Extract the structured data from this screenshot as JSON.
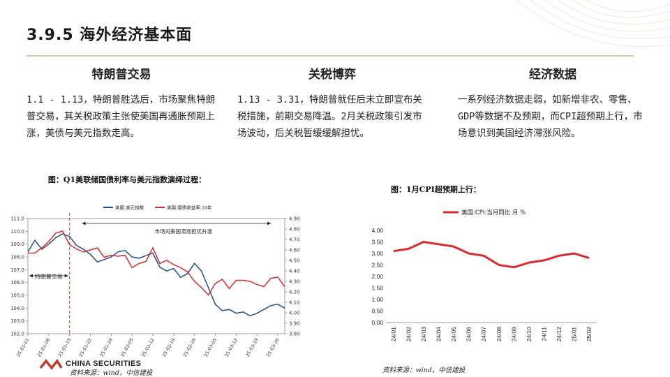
{
  "slide": {
    "title": "3.9.5 海外经济基本面",
    "accent": "#c0392b",
    "rule_color": "#d9c7a6"
  },
  "columns": [
    {
      "heading": "特朗普交易",
      "text": "1.1 - 1.13，特朗普胜选后，市场聚焦特朗普交易，其关税政策主张使美国再通胀预期上涨，美债与美元指数走高。"
    },
    {
      "heading": "关税博弈",
      "text": "1.13 - 3.31，特朗普就任后未立即宣布关税措施，前期交易降温。2月关税政策引发市场波动，后关税暂缓缓解担忧。"
    },
    {
      "heading": "经济数据",
      "text": "一系列经济数据走弱，如新增非农、零售、GDP等数据不及预期，而CPI超预期上行，市场意识到美国经济滞涨风险。"
    }
  ],
  "figure1": {
    "title": "图：Q1美联储国债利率与美元指数演绎过程：",
    "source": "资料来源：wind，中信建投"
  },
  "figure2": {
    "title": "图：1月CPI超预期上行：",
    "source": "资料来源：wind，中信建投"
  },
  "logo": {
    "text": "CHINA SECURITIES",
    "chinese": "中信建投"
  },
  "chart_data": [
    {
      "type": "line",
      "dual_axis": true,
      "x": [
        "25-01-01",
        "25-01-03",
        "25-01-06",
        "25-01-08",
        "25-01-10",
        "25-01-13",
        "25-01-15",
        "25-01-17",
        "25-01-20",
        "25-01-22",
        "25-01-24",
        "25-01-27",
        "25-01-29",
        "25-01-31",
        "25-02-03",
        "25-02-05",
        "25-02-07",
        "25-02-10",
        "25-02-12",
        "25-02-14",
        "25-02-17",
        "25-02-19",
        "25-02-21",
        "25-02-24",
        "25-02-26",
        "25-02-28",
        "25-03-03",
        "25-03-05",
        "25-03-07",
        "25-03-10",
        "25-03-12",
        "25-03-14",
        "25-03-17",
        "25-03-19",
        "25-03-21",
        "25-03-24",
        "25-03-26",
        "25-03-28"
      ],
      "xtick_labels": [
        "25-01-01",
        "25-01-08",
        "25-01-15",
        "25-01-22",
        "25-01-29",
        "25-02-05",
        "25-02-12",
        "25-02-19",
        "25-02-26",
        "25-03-05",
        "25-03-12",
        "25-03-19",
        "25-03-26"
      ],
      "series": [
        {
          "name": "美国:美元指数",
          "axis": "left",
          "color": "#1f4e8c",
          "values": [
            108.4,
            109.3,
            108.6,
            109.0,
            109.5,
            109.8,
            109.6,
            108.9,
            108.6,
            108.2,
            107.6,
            107.8,
            108.0,
            108.4,
            108.5,
            108.0,
            107.9,
            108.1,
            108.3,
            107.2,
            106.9,
            107.1,
            106.4,
            106.7,
            107.5,
            106.9,
            105.6,
            104.3,
            103.8,
            103.9,
            103.6,
            103.7,
            103.4,
            103.6,
            103.9,
            104.2,
            104.3,
            104.0
          ],
          "ylim": [
            102.0,
            111.0
          ],
          "yticks": [
            "102.0",
            "103.0",
            "104.0",
            "105.0",
            "106.0",
            "107.0",
            "108.0",
            "109.0",
            "110.0",
            "111.0"
          ]
        },
        {
          "name": "美国:国债收益率:10年",
          "axis": "right",
          "color": "#d92b2b",
          "values": [
            4.57,
            4.57,
            4.62,
            4.68,
            4.76,
            4.78,
            4.65,
            4.61,
            4.58,
            4.6,
            4.62,
            4.53,
            4.55,
            4.54,
            4.55,
            4.43,
            4.47,
            4.49,
            4.62,
            4.47,
            4.5,
            4.46,
            4.43,
            4.39,
            4.3,
            4.24,
            4.17,
            4.28,
            4.32,
            4.23,
            4.31,
            4.31,
            4.3,
            4.27,
            4.25,
            4.33,
            4.34,
            4.25
          ],
          "ylim": [
            3.8,
            4.9
          ],
          "yticks": [
            "3.80",
            "3.90",
            "4.00",
            "4.10",
            "4.20",
            "4.30",
            "4.40",
            "4.50",
            "4.60",
            "4.70",
            "4.80",
            "4.90"
          ]
        }
      ],
      "annotations": [
        {
          "text": "特朗普交易",
          "x_from": "25-01-01",
          "x_to": "25-01-15"
        },
        {
          "text": "市场对美国滞涨担忧升温",
          "x_from": "25-01-15",
          "x_to": "25-03-24"
        }
      ]
    },
    {
      "type": "line",
      "categories": [
        "24/01",
        "24/02",
        "24/03",
        "24/04",
        "24/05",
        "24/06",
        "24/07",
        "24/08",
        "24/09",
        "24/10",
        "24/11",
        "24/12",
        "25/01",
        "25/02"
      ],
      "series": [
        {
          "name": "美国:CPI:当月同比 月 %",
          "color": "#d92b2b",
          "values": [
            3.1,
            3.2,
            3.5,
            3.4,
            3.3,
            3.0,
            2.9,
            2.5,
            2.4,
            2.6,
            2.7,
            2.9,
            3.0,
            2.8
          ]
        }
      ],
      "ylim": [
        0.0,
        4.0
      ],
      "yticks": [
        "0.00",
        "0.50",
        "1.00",
        "1.50",
        "2.00",
        "2.50",
        "3.00",
        "3.50",
        "4.00"
      ]
    }
  ]
}
